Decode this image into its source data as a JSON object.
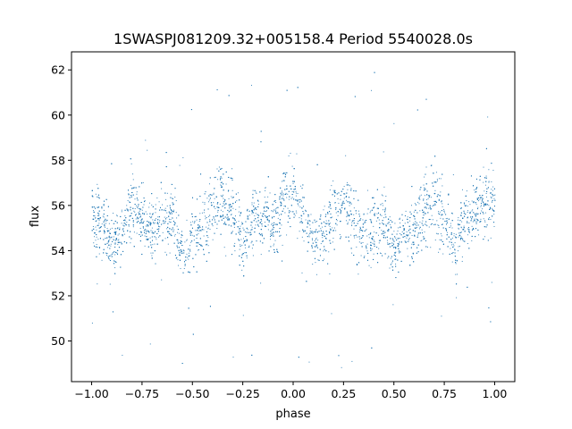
{
  "chart_data": {
    "type": "scatter",
    "title": "1SWASPJ081209.32+005158.4 Period 5540028.0s",
    "xlabel": "phase",
    "ylabel": "flux",
    "xlim": [
      -1.1,
      1.1
    ],
    "ylim": [
      48.2,
      62.8
    ],
    "x_ticks": [
      -1.0,
      -0.75,
      -0.5,
      -0.25,
      0.0,
      0.25,
      0.5,
      0.75,
      1.0
    ],
    "x_tick_labels": [
      "−1.00",
      "−0.75",
      "−0.50",
      "−0.25",
      "0.00",
      "0.25",
      "0.50",
      "0.75",
      "1.00"
    ],
    "y_ticks": [
      50,
      52,
      54,
      56,
      58,
      60,
      62
    ],
    "y_tick_labels": [
      "50",
      "52",
      "54",
      "56",
      "58",
      "60",
      "62"
    ],
    "grid": false,
    "marker_color": "#1f77b4",
    "x": [
      -1.0,
      -0.95,
      -0.9,
      -0.85,
      -0.8,
      -0.75,
      -0.7,
      -0.65,
      -0.6,
      -0.55,
      -0.5,
      -0.45,
      -0.4,
      -0.35,
      -0.3,
      -0.25,
      -0.2,
      -0.15,
      -0.1,
      -0.05,
      0.0,
      0.05,
      0.1,
      0.15,
      0.2,
      0.25,
      0.3,
      0.35,
      0.4,
      0.45,
      0.5,
      0.55,
      0.6,
      0.65,
      0.7,
      0.75,
      0.8,
      0.85,
      0.9,
      0.95,
      1.0
    ],
    "y": [
      55.6,
      55.2,
      54.3,
      54.8,
      56.0,
      55.2,
      54.9,
      55.3,
      55.6,
      53.8,
      54.7,
      55.0,
      55.9,
      56.2,
      55.6,
      54.3,
      55.4,
      55.6,
      55.0,
      56.3,
      56.6,
      55.6,
      54.4,
      54.6,
      55.8,
      56.4,
      55.3,
      54.7,
      55.0,
      55.6,
      53.9,
      54.9,
      55.1,
      55.9,
      56.1,
      55.3,
      54.4,
      55.5,
      55.7,
      56.2,
      56.1
    ],
    "y_spread": [
      1.0,
      1.2,
      1.0,
      0.9,
      1.4,
      1.1,
      1.2,
      1.2,
      1.2,
      0.9,
      1.1,
      1.3,
      1.4,
      1.4,
      1.3,
      1.1,
      1.3,
      1.2,
      1.1,
      1.2,
      1.3,
      1.0,
      0.9,
      1.0,
      1.4,
      1.3,
      1.3,
      1.1,
      1.2,
      1.2,
      1.0,
      1.1,
      1.2,
      1.4,
      1.4,
      1.3,
      1.1,
      1.2,
      1.2,
      1.4,
      1.1
    ]
  }
}
